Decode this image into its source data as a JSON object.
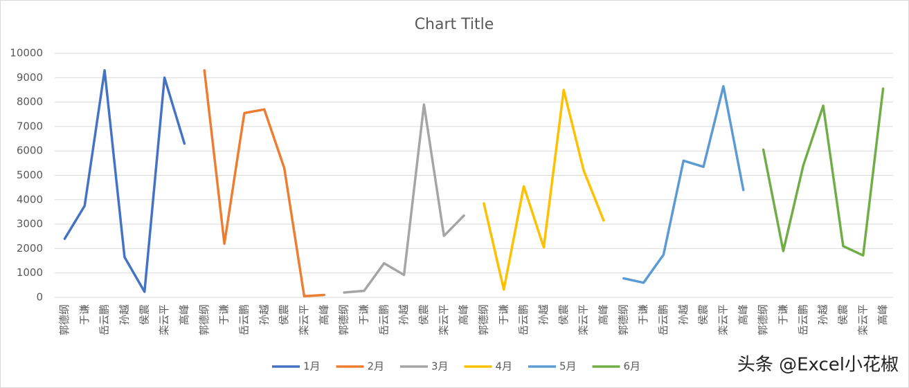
{
  "chart_data": {
    "type": "line",
    "title": "Chart Title",
    "categories": [
      "郭德纲",
      "于谦",
      "岳云鹏",
      "孙越",
      "侯震",
      "栾云平",
      "高峰",
      "郭德纲",
      "于谦",
      "岳云鹏",
      "孙越",
      "侯震",
      "栾云平",
      "高峰",
      "郭德纲",
      "于谦",
      "岳云鹏",
      "孙越",
      "侯震",
      "栾云平",
      "高峰",
      "郭德纲",
      "于谦",
      "岳云鹏",
      "孙越",
      "侯震",
      "栾云平",
      "高峰",
      "郭德纲",
      "于谦",
      "岳云鹏",
      "孙越",
      "侯震",
      "栾云平",
      "高峰",
      "郭德纲",
      "于谦",
      "岳云鹏",
      "孙越",
      "侯震",
      "栾云平",
      "高峰"
    ],
    "series": [
      {
        "name": "1月",
        "color": "#4472c4",
        "values": [
          2400,
          3750,
          9300,
          1650,
          230,
          9000,
          6300,
          null,
          null,
          null,
          null,
          null,
          null,
          null,
          null,
          null,
          null,
          null,
          null,
          null,
          null,
          null,
          null,
          null,
          null,
          null,
          null,
          null,
          null,
          null,
          null,
          null,
          null,
          null,
          null,
          null,
          null,
          null,
          null,
          null,
          null,
          null
        ]
      },
      {
        "name": "2月",
        "color": "#ed7d31",
        "values": [
          null,
          null,
          null,
          null,
          null,
          null,
          null,
          9300,
          2200,
          7550,
          7700,
          5300,
          50,
          100,
          null,
          null,
          null,
          null,
          null,
          null,
          null,
          null,
          null,
          null,
          null,
          null,
          null,
          null,
          null,
          null,
          null,
          null,
          null,
          null,
          null,
          null,
          null,
          null,
          null,
          null,
          null,
          null
        ]
      },
      {
        "name": "3月",
        "color": "#a5a5a5",
        "values": [
          null,
          null,
          null,
          null,
          null,
          null,
          null,
          null,
          null,
          null,
          null,
          null,
          null,
          null,
          200,
          270,
          1400,
          920,
          7900,
          2520,
          3350,
          null,
          null,
          null,
          null,
          null,
          null,
          null,
          null,
          null,
          null,
          null,
          null,
          null,
          null,
          null,
          null,
          null,
          null,
          null,
          null,
          null
        ]
      },
      {
        "name": "4月",
        "color": "#ffc000",
        "values": [
          null,
          null,
          null,
          null,
          null,
          null,
          null,
          null,
          null,
          null,
          null,
          null,
          null,
          null,
          null,
          null,
          null,
          null,
          null,
          null,
          null,
          3850,
          320,
          4550,
          2050,
          8500,
          5200,
          3150,
          null,
          null,
          null,
          null,
          null,
          null,
          null,
          null,
          null,
          null,
          null,
          null,
          null,
          null
        ]
      },
      {
        "name": "5月",
        "color": "#5b9bd5",
        "values": [
          null,
          null,
          null,
          null,
          null,
          null,
          null,
          null,
          null,
          null,
          null,
          null,
          null,
          null,
          null,
          null,
          null,
          null,
          null,
          null,
          null,
          null,
          null,
          null,
          null,
          null,
          null,
          null,
          780,
          600,
          1750,
          5600,
          5350,
          8650,
          4400,
          null,
          null,
          null,
          null,
          null,
          null,
          null
        ]
      },
      {
        "name": "6月",
        "color": "#70ad47",
        "values": [
          null,
          null,
          null,
          null,
          null,
          null,
          null,
          null,
          null,
          null,
          null,
          null,
          null,
          null,
          null,
          null,
          null,
          null,
          null,
          null,
          null,
          null,
          null,
          null,
          null,
          null,
          null,
          null,
          null,
          null,
          null,
          null,
          null,
          null,
          null,
          6050,
          1900,
          5400,
          7850,
          2100,
          1720,
          8550
        ]
      }
    ],
    "ylim": [
      0,
      10000
    ],
    "yticks": [
      0,
      1000,
      2000,
      3000,
      4000,
      5000,
      6000,
      7000,
      8000,
      9000,
      10000
    ],
    "grid": true,
    "legend": "bottom"
  },
  "watermark": "头条 @Excel小花椒"
}
